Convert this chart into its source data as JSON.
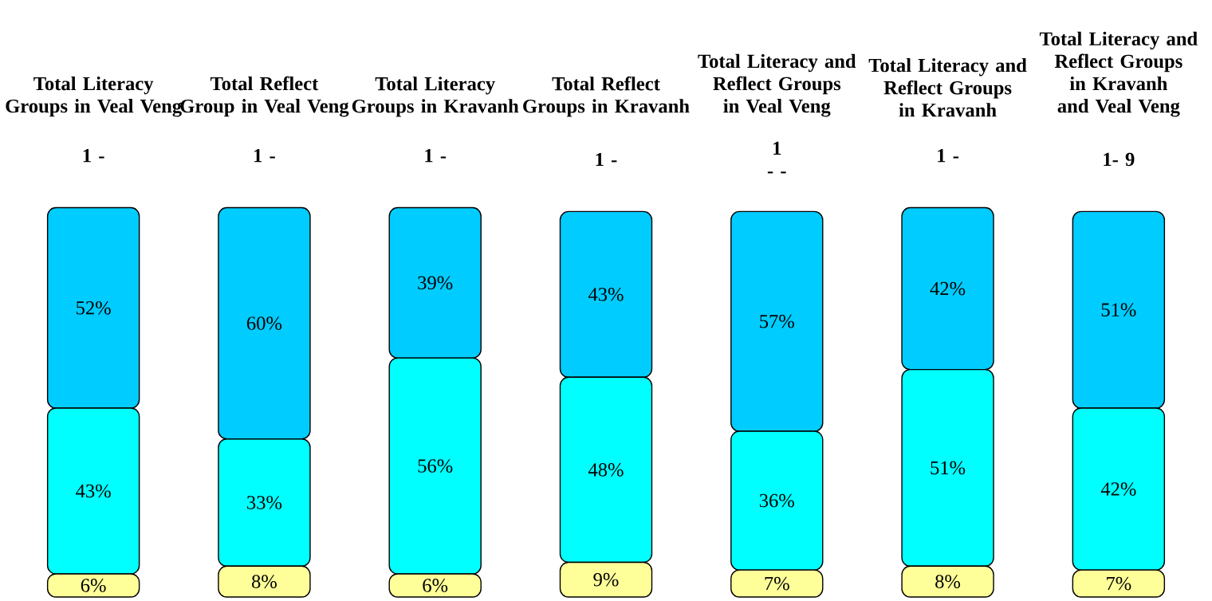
{
  "chart_data": {
    "type": "bar",
    "stacked": true,
    "categories": [
      "Total Literacy Groups in Veal Veng",
      "Total Reflect Group in Veal Veng",
      "Total Literacy Groups in Kravanh",
      "Total Reflect Groups in Kravanh",
      "Total Literacy and Reflect Groups in Veal Veng",
      "Total Literacy and Reflect Groups in Kravanh",
      "Total Literacy and Reflect Groups in Kravanh and Veal Veng"
    ],
    "series": [
      {
        "color": "#ffff99",
        "values": [
          6,
          8,
          6,
          9,
          7,
          8,
          7
        ],
        "value_labels": [
          "6%",
          "8%",
          "6%",
          "9%",
          "7%",
          "8%",
          "7%"
        ]
      },
      {
        "color": "#00ffff",
        "values": [
          43,
          33,
          56,
          48,
          36,
          51,
          42
        ],
        "value_labels": [
          "43%",
          "33%",
          "56%",
          "48%",
          "36%",
          "51%",
          "42%"
        ]
      },
      {
        "color": "#00ccff",
        "values": [
          52,
          60,
          39,
          43,
          57,
          42,
          51
        ],
        "value_labels": [
          "52%",
          "60%",
          "39%",
          "43%",
          "57%",
          "42%",
          "51%"
        ]
      }
    ],
    "annotations": [
      "1 -",
      "1 -",
      "1 -",
      "1 -",
      "1 - -",
      "1 -",
      "1- 9"
    ]
  }
}
